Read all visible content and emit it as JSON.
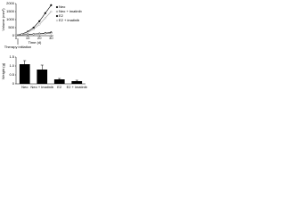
{
  "chart_data": [
    {
      "type": "line",
      "y_label": "Volume (mm³)",
      "x_label": "Time (d)",
      "annotation": "Therapy initiation",
      "x": [
        0,
        5,
        10,
        15,
        20,
        25,
        30
      ],
      "series": [
        {
          "name": "Neo",
          "color": "#000000",
          "values": [
            50,
            60,
            80,
            100,
            130,
            160,
            200
          ]
        },
        {
          "name": "Neo + imatinib",
          "color": "#666666",
          "values": [
            50,
            55,
            70,
            90,
            110,
            130,
            150
          ]
        },
        {
          "name": "E2",
          "color": "#000000",
          "values": [
            50,
            100,
            250,
            500,
            900,
            1400,
            1900
          ]
        },
        {
          "name": "E2 + imatinib",
          "color": "#999999",
          "values": [
            50,
            90,
            200,
            400,
            700,
            1100,
            1500
          ]
        }
      ],
      "xlim": [
        0,
        32
      ],
      "xticks": [
        0,
        10,
        20,
        30
      ],
      "ylim": [
        0,
        2000
      ],
      "yticks": [
        0,
        500,
        1000,
        1500,
        2000
      ]
    },
    {
      "type": "bar",
      "y_label": "Weight (g)",
      "categories": [
        "Neo",
        "Neo + imatinib",
        "E2",
        "E2 + imatinib"
      ],
      "values": [
        1.1,
        0.8,
        0.25,
        0.15
      ],
      "errors": [
        0.2,
        0.25,
        0.05,
        0.05
      ],
      "color": "#000000",
      "ylim": [
        0,
        1.5
      ],
      "yticks": [
        0,
        0.5,
        {
          "value": 1,
          "label": "1.0"
        },
        1.5
      ]
    }
  ]
}
